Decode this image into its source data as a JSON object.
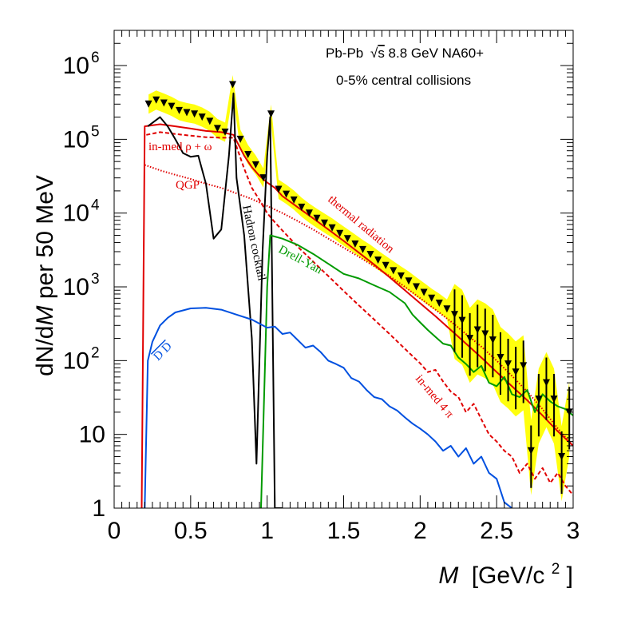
{
  "chart_data": {
    "type": "line",
    "title": "",
    "xlabel_main": "M",
    "xlabel_unit": "[GeV/c",
    "xlabel_unit_sup": "2",
    "xlabel_unit_end": "]",
    "ylabel_a": "dN/d",
    "ylabel_b": "M",
    "ylabel_c": " per 50 MeV",
    "xlim": [
      0,
      3
    ],
    "ylim": [
      1,
      3000000
    ],
    "yscale": "log",
    "grid": false,
    "x_ticks": [
      {
        "v": 0,
        "label": "0"
      },
      {
        "v": 0.5,
        "label": "0.5"
      },
      {
        "v": 1,
        "label": "1"
      },
      {
        "v": 1.5,
        "label": "1.5"
      },
      {
        "v": 2,
        "label": "2"
      },
      {
        "v": 2.5,
        "label": "2.5"
      },
      {
        "v": 3,
        "label": "3"
      }
    ],
    "y_ticks": [
      {
        "v": 1,
        "label": "1",
        "exp": ""
      },
      {
        "v": 10,
        "label": "10",
        "exp": ""
      },
      {
        "v": 100,
        "label": "10",
        "exp": "2"
      },
      {
        "v": 1000,
        "label": "10",
        "exp": "3"
      },
      {
        "v": 10000,
        "label": "10",
        "exp": "4"
      },
      {
        "v": 100000,
        "label": "10",
        "exp": "5"
      },
      {
        "v": 1000000,
        "label": "10",
        "exp": "6"
      }
    ],
    "info_lines": {
      "line1_a": "Pb-Pb ",
      "line1_sqrt": "√",
      "line1_s": "s",
      "line1_b": " 8.8 GeV NA60+",
      "line2": "0-5% central collisions"
    },
    "annotations": {
      "inmed_rho_omega": "in-med ρ + ω",
      "qgp": "QGP",
      "hadron_cocktail": "Hadron cocktail",
      "thermal_radiation": "thermal radiation",
      "drell_yan": "Drell-Yan",
      "dd": "D D",
      "inmed_4pi": "in-med 4 π"
    },
    "series": [
      {
        "name": "data",
        "style": "markers",
        "color": "#000000",
        "band_color": "#ffff00",
        "points": [
          [
            0.225,
            300000
          ],
          [
            0.275,
            340000
          ],
          [
            0.325,
            310000
          ],
          [
            0.375,
            280000
          ],
          [
            0.425,
            245000
          ],
          [
            0.475,
            230000
          ],
          [
            0.525,
            220000
          ],
          [
            0.575,
            200000
          ],
          [
            0.625,
            175000
          ],
          [
            0.675,
            140000
          ],
          [
            0.725,
            125000
          ],
          [
            0.775,
            550000
          ],
          [
            0.825,
            100000
          ],
          [
            0.875,
            62000
          ],
          [
            0.925,
            45000
          ],
          [
            0.975,
            30000
          ],
          [
            1.025,
            220000
          ],
          [
            1.075,
            21000
          ],
          [
            1.125,
            18000
          ],
          [
            1.175,
            15000
          ],
          [
            1.225,
            12000
          ],
          [
            1.275,
            10000
          ],
          [
            1.325,
            8500
          ],
          [
            1.375,
            7300
          ],
          [
            1.425,
            6300
          ],
          [
            1.475,
            5300
          ],
          [
            1.525,
            4500
          ],
          [
            1.575,
            3800
          ],
          [
            1.625,
            3200
          ],
          [
            1.675,
            2750
          ],
          [
            1.725,
            2300
          ],
          [
            1.775,
            1950
          ],
          [
            1.825,
            1650
          ],
          [
            1.875,
            1400
          ],
          [
            1.925,
            1200
          ],
          [
            1.975,
            1000
          ],
          [
            2.025,
            840
          ],
          [
            2.075,
            700
          ],
          [
            2.125,
            600
          ],
          [
            2.175,
            500
          ],
          [
            2.225,
            420
          ],
          [
            2.275,
            350
          ],
          [
            2.325,
            200
          ],
          [
            2.375,
            260
          ],
          [
            2.425,
            230
          ],
          [
            2.475,
            190
          ],
          [
            2.525,
            110
          ],
          [
            2.575,
            90
          ],
          [
            2.625,
            70
          ],
          [
            2.675,
            85
          ],
          [
            2.725,
            6
          ],
          [
            2.775,
            30
          ],
          [
            2.825,
            50
          ],
          [
            2.875,
            30
          ],
          [
            2.925,
            5
          ],
          [
            2.975,
            20
          ]
        ]
      },
      {
        "name": "",
        "label_key": "thermal_radiation",
        "style": "solid",
        "color": "#e00000",
        "points": [
          [
            0.18,
            1
          ],
          [
            0.2,
            150000
          ],
          [
            0.3,
            160000
          ],
          [
            0.4,
            150000
          ],
          [
            0.5,
            140000
          ],
          [
            0.6,
            130000
          ],
          [
            0.7,
            125000
          ],
          [
            0.78,
            115000
          ],
          [
            0.85,
            60000
          ],
          [
            0.9,
            42000
          ],
          [
            0.95,
            32000
          ],
          [
            1.0,
            26000
          ],
          [
            1.05,
            22000
          ],
          [
            1.1,
            17000
          ],
          [
            1.2,
            12000
          ],
          [
            1.3,
            8500
          ],
          [
            1.4,
            6000
          ],
          [
            1.5,
            4200
          ],
          [
            1.6,
            2900
          ],
          [
            1.7,
            2000
          ],
          [
            1.8,
            1350
          ],
          [
            1.9,
            900
          ],
          [
            2.0,
            600
          ],
          [
            2.1,
            400
          ],
          [
            2.2,
            260
          ],
          [
            2.3,
            170
          ],
          [
            2.4,
            110
          ],
          [
            2.5,
            70
          ],
          [
            2.6,
            45
          ],
          [
            2.7,
            29
          ],
          [
            2.8,
            18
          ],
          [
            2.9,
            11
          ],
          [
            3.0,
            7
          ]
        ]
      },
      {
        "name": "",
        "label_key": "inmed_rho_omega",
        "style": "dashed",
        "color": "#e00000",
        "points": [
          [
            0.21,
            115000
          ],
          [
            0.3,
            125000
          ],
          [
            0.4,
            118000
          ],
          [
            0.5,
            112000
          ],
          [
            0.6,
            107000
          ],
          [
            0.7,
            105000
          ],
          [
            0.78,
            105000
          ],
          [
            0.85,
            40000
          ],
          [
            0.9,
            22000
          ],
          [
            0.95,
            15000
          ],
          [
            1.0,
            10000
          ],
          [
            1.05,
            7500
          ],
          [
            1.1,
            5800
          ],
          [
            1.2,
            3500
          ],
          [
            1.3,
            2200
          ],
          [
            1.4,
            1400
          ],
          [
            1.5,
            880
          ],
          [
            1.6,
            560
          ],
          [
            1.7,
            360
          ],
          [
            1.8,
            230
          ],
          [
            1.9,
            145
          ],
          [
            2.0,
            92
          ],
          [
            2.05,
            70
          ],
          [
            2.1,
            75
          ],
          [
            2.15,
            52
          ],
          [
            2.2,
            38
          ],
          [
            2.25,
            32
          ],
          [
            2.3,
            20
          ],
          [
            2.35,
            26
          ],
          [
            2.4,
            16
          ],
          [
            2.45,
            10
          ],
          [
            2.5,
            8
          ],
          [
            2.55,
            6
          ],
          [
            2.6,
            5
          ],
          [
            2.65,
            3
          ],
          [
            2.7,
            4
          ],
          [
            2.75,
            2.5
          ],
          [
            2.8,
            3.5
          ],
          [
            2.85,
            2.2
          ],
          [
            2.9,
            3
          ],
          [
            2.95,
            2
          ],
          [
            3.0,
            1.5
          ]
        ]
      },
      {
        "name": "",
        "label_key": "qgp",
        "style": "dotted",
        "color": "#e00000",
        "points": [
          [
            0.2,
            45000
          ],
          [
            0.3,
            38000
          ],
          [
            0.4,
            33000
          ],
          [
            0.5,
            29000
          ],
          [
            0.6,
            25000
          ],
          [
            0.7,
            22000
          ],
          [
            0.8,
            18500
          ],
          [
            0.9,
            15500
          ],
          [
            1.0,
            12500
          ],
          [
            1.1,
            10000
          ],
          [
            1.2,
            7800
          ],
          [
            1.3,
            6000
          ],
          [
            1.4,
            4500
          ],
          [
            1.5,
            3400
          ],
          [
            1.6,
            2550
          ],
          [
            1.7,
            1900
          ],
          [
            1.8,
            1400
          ],
          [
            1.9,
            1000
          ],
          [
            2.0,
            700
          ],
          [
            2.1,
            490
          ],
          [
            2.2,
            340
          ],
          [
            2.3,
            230
          ],
          [
            2.4,
            155
          ],
          [
            2.5,
            100
          ],
          [
            2.6,
            62
          ],
          [
            2.7,
            38
          ],
          [
            2.8,
            22
          ],
          [
            2.9,
            12
          ],
          [
            3.0,
            7
          ]
        ]
      },
      {
        "name": "",
        "label_key": "hadron_cocktail",
        "style": "solid",
        "color": "#000000",
        "points": [
          [
            0.22,
            150000
          ],
          [
            0.3,
            200000
          ],
          [
            0.35,
            150000
          ],
          [
            0.4,
            100000
          ],
          [
            0.45,
            65000
          ],
          [
            0.5,
            58000
          ],
          [
            0.55,
            60000
          ],
          [
            0.6,
            25000
          ],
          [
            0.65,
            4500
          ],
          [
            0.7,
            6000
          ],
          [
            0.75,
            60000
          ],
          [
            0.78,
            420000
          ],
          [
            0.8,
            30000
          ],
          [
            0.85,
            5000
          ],
          [
            0.9,
            200
          ],
          [
            0.93,
            4
          ],
          [
            0.97,
            3000
          ],
          [
            1.0,
            60000
          ],
          [
            1.02,
            200000
          ],
          [
            1.05,
            1
          ],
          [
            1.07,
            1
          ],
          [
            1.1,
            1
          ]
        ]
      },
      {
        "name": "",
        "label_key": "drell_yan",
        "style": "solid",
        "color": "#009a00",
        "points": [
          [
            0.96,
            1
          ],
          [
            1.0,
            1000
          ],
          [
            1.02,
            5000
          ],
          [
            1.1,
            4500
          ],
          [
            1.2,
            3700
          ],
          [
            1.3,
            2800
          ],
          [
            1.4,
            2050
          ],
          [
            1.5,
            1500
          ],
          [
            1.6,
            1300
          ],
          [
            1.7,
            1050
          ],
          [
            1.8,
            850
          ],
          [
            1.9,
            600
          ],
          [
            1.95,
            420
          ],
          [
            2.0,
            330
          ],
          [
            2.05,
            260
          ],
          [
            2.1,
            210
          ],
          [
            2.15,
            170
          ],
          [
            2.2,
            160
          ],
          [
            2.25,
            110
          ],
          [
            2.3,
            90
          ],
          [
            2.35,
            70
          ],
          [
            2.4,
            85
          ],
          [
            2.45,
            50
          ],
          [
            2.5,
            45
          ],
          [
            2.55,
            60
          ],
          [
            2.6,
            35
          ],
          [
            2.65,
            32
          ],
          [
            2.7,
            40
          ],
          [
            2.75,
            20
          ],
          [
            2.8,
            35
          ],
          [
            2.85,
            28
          ],
          [
            2.9,
            24
          ],
          [
            2.95,
            22
          ],
          [
            3.0,
            18
          ]
        ]
      },
      {
        "name": "",
        "label_key": "dd",
        "style": "solid",
        "color": "#0050e0",
        "points": [
          [
            0.2,
            1
          ],
          [
            0.22,
            100
          ],
          [
            0.25,
            180
          ],
          [
            0.3,
            300
          ],
          [
            0.35,
            380
          ],
          [
            0.4,
            450
          ],
          [
            0.45,
            480
          ],
          [
            0.5,
            510
          ],
          [
            0.6,
            520
          ],
          [
            0.7,
            490
          ],
          [
            0.8,
            420
          ],
          [
            0.9,
            360
          ],
          [
            1.0,
            280
          ],
          [
            1.05,
            290
          ],
          [
            1.1,
            230
          ],
          [
            1.15,
            240
          ],
          [
            1.2,
            190
          ],
          [
            1.25,
            150
          ],
          [
            1.3,
            160
          ],
          [
            1.35,
            130
          ],
          [
            1.4,
            100
          ],
          [
            1.45,
            90
          ],
          [
            1.5,
            80
          ],
          [
            1.55,
            58
          ],
          [
            1.6,
            52
          ],
          [
            1.65,
            40
          ],
          [
            1.7,
            32
          ],
          [
            1.75,
            30
          ],
          [
            1.8,
            24
          ],
          [
            1.85,
            21
          ],
          [
            1.9,
            17
          ],
          [
            1.95,
            14
          ],
          [
            2.0,
            12
          ],
          [
            2.05,
            10
          ],
          [
            2.1,
            8
          ],
          [
            2.15,
            6
          ],
          [
            2.2,
            7
          ],
          [
            2.25,
            5
          ],
          [
            2.3,
            6.5
          ],
          [
            2.35,
            4
          ],
          [
            2.4,
            5
          ],
          [
            2.45,
            3
          ],
          [
            2.5,
            2.5
          ],
          [
            2.55,
            1.2
          ],
          [
            2.6,
            1
          ]
        ]
      }
    ]
  }
}
